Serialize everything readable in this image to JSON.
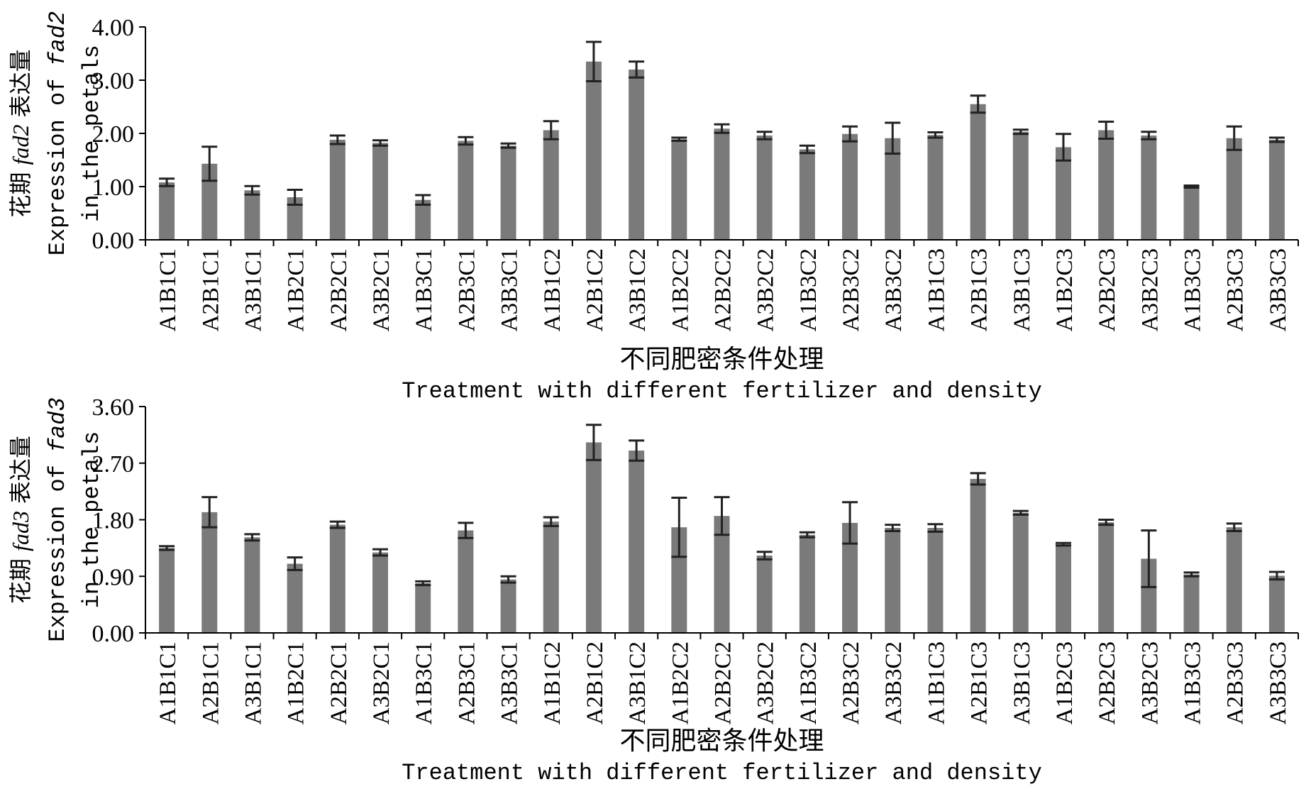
{
  "chart_data": [
    {
      "type": "bar",
      "ylabel_cn_prefix": "花期",
      "ylabel_cn_gene": "fad2",
      "ylabel_cn_suffix": "表达量",
      "ylabel_en_prefix": "Expression of",
      "ylabel_en_gene": "fad2",
      "ylabel_en_line2": "in the petals",
      "xlabel_cn": "不同肥密条件处理",
      "xlabel_en": "Treatment with different fertilizer and density",
      "ylim": [
        0,
        4
      ],
      "yticks": [
        "0.00",
        "1.00",
        "2.00",
        "3.00",
        "4.00"
      ],
      "categories": [
        "A1B1C1",
        "A2B1C1",
        "A3B1C1",
        "A1B2C1",
        "A2B2C1",
        "A3B2C1",
        "A1B3C1",
        "A2B3C1",
        "A3B3C1",
        "A1B1C2",
        "A2B1C2",
        "A3B1C2",
        "A1B2C2",
        "A2B2C2",
        "A3B2C2",
        "A1B3C2",
        "A2B3C2",
        "A3B3C2",
        "A1B1C3",
        "A2B1C3",
        "A3B1C3",
        "A1B2C3",
        "A2B2C3",
        "A3B2C3",
        "A1B3C3",
        "A2B3C3",
        "A3B3C3"
      ],
      "values": [
        1.08,
        1.43,
        0.93,
        0.8,
        1.88,
        1.82,
        0.75,
        1.86,
        1.77,
        2.06,
        3.35,
        3.2,
        1.89,
        2.09,
        1.96,
        1.7,
        1.99,
        1.91,
        1.97,
        2.55,
        2.03,
        1.74,
        2.06,
        1.96,
        1.0,
        1.91,
        1.88
      ],
      "errors": [
        0.07,
        0.32,
        0.08,
        0.14,
        0.08,
        0.05,
        0.09,
        0.07,
        0.04,
        0.17,
        0.37,
        0.15,
        0.03,
        0.08,
        0.07,
        0.07,
        0.14,
        0.29,
        0.05,
        0.16,
        0.04,
        0.25,
        0.16,
        0.07,
        0.02,
        0.22,
        0.04
      ]
    },
    {
      "type": "bar",
      "ylabel_cn_prefix": "花期",
      "ylabel_cn_gene": "fad3",
      "ylabel_cn_suffix": "表达量",
      "ylabel_en_prefix": "Expression of",
      "ylabel_en_gene": "fad3",
      "ylabel_en_line2": "in the petals",
      "xlabel_cn": "不同肥密条件处理",
      "xlabel_en": "Treatment with different fertilizer and density",
      "ylim": [
        0,
        3.6
      ],
      "yticks": [
        "0.00",
        "0.90",
        "1.80",
        "2.70",
        "3.60"
      ],
      "categories": [
        "A1B1C1",
        "A2B1C1",
        "A3B1C1",
        "A1B2C1",
        "A2B2C1",
        "A3B2C1",
        "A1B3C1",
        "A2B3C1",
        "A3B3C1",
        "A1B1C2",
        "A2B1C2",
        "A3B1C2",
        "A1B2C2",
        "A2B2C2",
        "A3B2C2",
        "A1B3C2",
        "A2B3C2",
        "A3B3C2",
        "A1B1C3",
        "A2B1C3",
        "A3B1C3",
        "A1B2C3",
        "A2B2C3",
        "A3B2C3",
        "A1B3C3",
        "A2B3C3",
        "A3B3C3"
      ],
      "values": [
        1.35,
        1.92,
        1.52,
        1.1,
        1.72,
        1.28,
        0.79,
        1.63,
        0.85,
        1.77,
        3.03,
        2.9,
        1.68,
        1.86,
        1.23,
        1.56,
        1.75,
        1.67,
        1.67,
        2.45,
        1.91,
        1.41,
        1.76,
        1.18,
        0.93,
        1.68,
        0.91
      ],
      "errors": [
        0.03,
        0.24,
        0.05,
        0.1,
        0.05,
        0.05,
        0.03,
        0.12,
        0.05,
        0.07,
        0.28,
        0.16,
        0.47,
        0.3,
        0.06,
        0.04,
        0.33,
        0.05,
        0.06,
        0.09,
        0.03,
        0.02,
        0.04,
        0.45,
        0.03,
        0.06,
        0.06
      ]
    }
  ],
  "colors": {
    "bar": "#7a7a7a",
    "axis": "#000000"
  }
}
